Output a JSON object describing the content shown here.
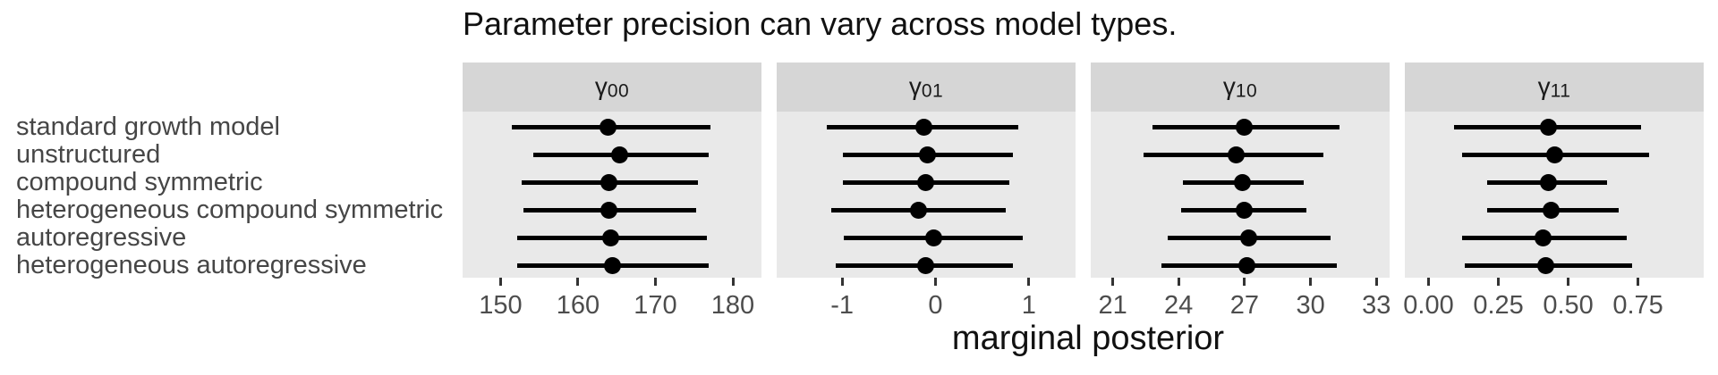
{
  "title": "Parameter precision can vary across model types.",
  "x_axis_label": "marginal posterior",
  "y_labels": [
    "standard growth model",
    "unstructured",
    "compound symmetric",
    "heterogeneous compound symmetric",
    "autoregressive",
    "heterogeneous autoregressive"
  ],
  "colors": {
    "strip_bg": "#d6d6d6",
    "panel_bg": "#e9e9e9",
    "interval": "#000000",
    "point": "#000000",
    "tick_mark": "#333333",
    "tick_label": "#4d4d4d",
    "y_label": "#464646",
    "title": "#111111"
  },
  "chart_data": {
    "type": "scatter",
    "subtype": "point-interval, 4 facets sharing categorical y axis",
    "title": "Parameter precision can vary across model types.",
    "xlabel": "marginal posterior",
    "ylabel": "",
    "grid": false,
    "categories": [
      "standard growth model",
      "unstructured",
      "compound symmetric",
      "heterogeneous compound symmetric",
      "autoregressive",
      "heterogeneous autoregressive"
    ],
    "facets": [
      {
        "label_base": "γ",
        "label_sub": "00",
        "ticks": [
          150,
          160,
          170,
          180
        ],
        "tick_labels": [
          "150",
          "160",
          "170",
          "180"
        ],
        "domain": [
          145.1,
          183.7
        ],
        "rows": [
          {
            "lo": 151.4,
            "mid": 163.9,
            "hi": 177.1
          },
          {
            "lo": 154.2,
            "mid": 165.4,
            "hi": 176.9
          },
          {
            "lo": 152.7,
            "mid": 164.0,
            "hi": 175.5
          },
          {
            "lo": 152.9,
            "mid": 164.0,
            "hi": 175.2
          },
          {
            "lo": 152.1,
            "mid": 164.2,
            "hi": 176.6
          },
          {
            "lo": 152.1,
            "mid": 164.4,
            "hi": 176.9
          }
        ]
      },
      {
        "label_base": "γ",
        "label_sub": "01",
        "ticks": [
          -1,
          0,
          1
        ],
        "tick_labels": [
          "-1",
          "0",
          "1"
        ],
        "domain": [
          -1.7,
          1.5
        ],
        "rows": [
          {
            "lo": -1.16,
            "mid": -0.12,
            "hi": 0.89
          },
          {
            "lo": -0.99,
            "mid": -0.09,
            "hi": 0.83
          },
          {
            "lo": -0.99,
            "mid": -0.11,
            "hi": 0.79
          },
          {
            "lo": -1.12,
            "mid": -0.18,
            "hi": 0.75
          },
          {
            "lo": -0.98,
            "mid": -0.02,
            "hi": 0.94
          },
          {
            "lo": -1.07,
            "mid": -0.11,
            "hi": 0.83
          }
        ]
      },
      {
        "label_base": "γ",
        "label_sub": "10",
        "ticks": [
          21,
          24,
          27,
          30,
          33
        ],
        "tick_labels": [
          "21",
          "24",
          "27",
          "30",
          "33"
        ],
        "domain": [
          20.0,
          33.6
        ],
        "rows": [
          {
            "lo": 22.8,
            "mid": 27.0,
            "hi": 31.3
          },
          {
            "lo": 22.4,
            "mid": 26.6,
            "hi": 30.6
          },
          {
            "lo": 24.2,
            "mid": 26.9,
            "hi": 29.7
          },
          {
            "lo": 24.1,
            "mid": 27.0,
            "hi": 29.8
          },
          {
            "lo": 23.5,
            "mid": 27.2,
            "hi": 30.9
          },
          {
            "lo": 23.2,
            "mid": 27.1,
            "hi": 31.2
          }
        ]
      },
      {
        "label_base": "γ",
        "label_sub": "11",
        "ticks": [
          0,
          0.25,
          0.5,
          0.75
        ],
        "tick_labels": [
          "0.00",
          "0.25",
          "0.50",
          "0.75"
        ],
        "domain": [
          -0.085,
          0.985
        ],
        "rows": [
          {
            "lo": 0.09,
            "mid": 0.43,
            "hi": 0.76
          },
          {
            "lo": 0.12,
            "mid": 0.45,
            "hi": 0.79
          },
          {
            "lo": 0.21,
            "mid": 0.43,
            "hi": 0.64
          },
          {
            "lo": 0.21,
            "mid": 0.44,
            "hi": 0.68
          },
          {
            "lo": 0.12,
            "mid": 0.41,
            "hi": 0.71
          },
          {
            "lo": 0.13,
            "mid": 0.42,
            "hi": 0.73
          }
        ]
      }
    ]
  }
}
